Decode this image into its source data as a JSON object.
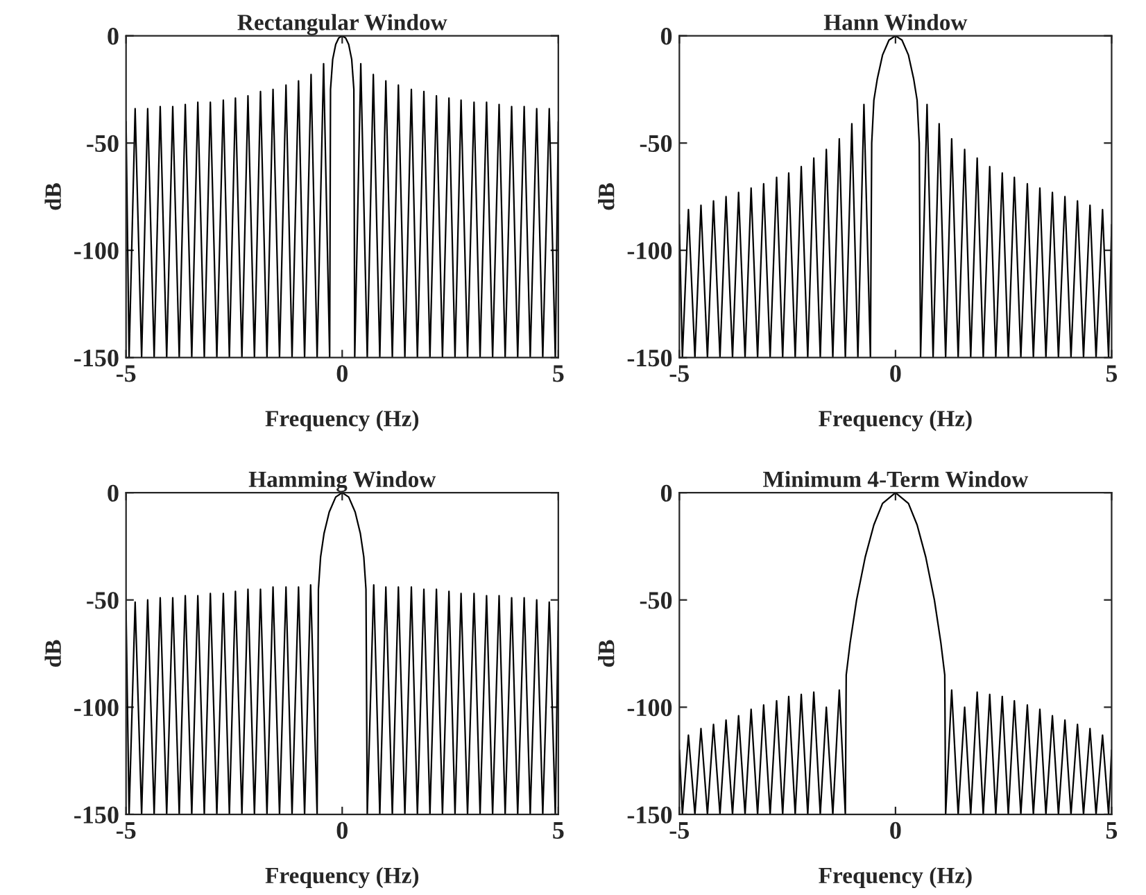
{
  "chart_data": [
    {
      "type": "line",
      "title": "Rectangular Window",
      "xlabel": "Frequency (Hz)",
      "ylabel": "dB",
      "xlim": [
        -5,
        5
      ],
      "ylim": [
        -150,
        0
      ],
      "xticks": [
        -5,
        0,
        5
      ],
      "yticks": [
        -150,
        -100,
        -50,
        0
      ],
      "series": [
        {
          "color": "#000000",
          "x": [
            -5,
            -4.93,
            -4.79,
            -4.64,
            -4.5,
            -4.35,
            -4.21,
            -4.06,
            -3.92,
            -3.77,
            -3.63,
            -3.48,
            -3.34,
            -3.19,
            -3.05,
            -2.9,
            -2.75,
            -2.61,
            -2.47,
            -2.32,
            -2.18,
            -2.03,
            -1.89,
            -1.74,
            -1.6,
            -1.45,
            -1.3,
            -1.16,
            -1.01,
            -0.87,
            -0.72,
            -0.58,
            -0.43,
            -0.29,
            -0.27,
            -0.22,
            -0.15,
            -0.08,
            0,
            0.08,
            0.15,
            0.22,
            0.27,
            0.29,
            0.43,
            0.58,
            0.72,
            0.87,
            1.01,
            1.16,
            1.3,
            1.45,
            1.6,
            1.74,
            1.89,
            2.03,
            2.18,
            2.32,
            2.47,
            2.61,
            2.75,
            2.9,
            3.05,
            3.19,
            3.34,
            3.48,
            3.63,
            3.77,
            3.92,
            4.06,
            4.21,
            4.35,
            4.5,
            4.64,
            4.79,
            4.93,
            5
          ],
          "values": [
            -40,
            -150,
            -34,
            -150,
            -34,
            -150,
            -33,
            -150,
            -33,
            -150,
            -32,
            -150,
            -31,
            -150,
            -31,
            -150,
            -30,
            -150,
            -29,
            -150,
            -28,
            -150,
            -26,
            -150,
            -25,
            -150,
            -23,
            -150,
            -21,
            -150,
            -18,
            -150,
            -13,
            -150,
            -25,
            -11,
            -4,
            -1,
            0,
            -1,
            -4,
            -11,
            -25,
            -150,
            -13,
            -150,
            -18,
            -150,
            -21,
            -150,
            -23,
            -150,
            -25,
            -150,
            -26,
            -150,
            -28,
            -150,
            -29,
            -150,
            -30,
            -150,
            -31,
            -150,
            -31,
            -150,
            -32,
            -150,
            -33,
            -150,
            -33,
            -150,
            -34,
            -150,
            -34,
            -150,
            -40
          ]
        }
      ]
    },
    {
      "type": "line",
      "title": "Hann Window",
      "xlabel": "Frequency (Hz)",
      "ylabel": "dB",
      "xlim": [
        -5,
        5
      ],
      "ylim": [
        -150,
        0
      ],
      "xticks": [
        -5,
        0,
        5
      ],
      "yticks": [
        -150,
        -100,
        -50,
        0
      ],
      "series": [
        {
          "color": "#000000",
          "x": [
            -5,
            -4.93,
            -4.79,
            -4.64,
            -4.5,
            -4.35,
            -4.21,
            -4.06,
            -3.92,
            -3.77,
            -3.63,
            -3.48,
            -3.34,
            -3.19,
            -3.05,
            -2.9,
            -2.75,
            -2.61,
            -2.47,
            -2.32,
            -2.18,
            -2.03,
            -1.89,
            -1.74,
            -1.6,
            -1.45,
            -1.3,
            -1.16,
            -1.01,
            -0.87,
            -0.73,
            -0.58,
            -0.55,
            -0.5,
            -0.42,
            -0.3,
            -0.15,
            0,
            0.15,
            0.3,
            0.42,
            0.5,
            0.55,
            0.58,
            0.73,
            0.87,
            1.01,
            1.16,
            1.3,
            1.45,
            1.6,
            1.74,
            1.89,
            2.03,
            2.18,
            2.32,
            2.47,
            2.61,
            2.75,
            2.9,
            3.05,
            3.19,
            3.34,
            3.48,
            3.63,
            3.77,
            3.92,
            4.06,
            4.21,
            4.35,
            4.5,
            4.64,
            4.79,
            4.93,
            5
          ],
          "values": [
            -88,
            -150,
            -81,
            -150,
            -79,
            -150,
            -77,
            -150,
            -75,
            -150,
            -73,
            -150,
            -71,
            -150,
            -69,
            -150,
            -66,
            -150,
            -64,
            -150,
            -61,
            -150,
            -57,
            -150,
            -53,
            -150,
            -48,
            -150,
            -41,
            -150,
            -32,
            -150,
            -50,
            -30,
            -20,
            -9,
            -2,
            0,
            -2,
            -9,
            -20,
            -30,
            -50,
            -150,
            -32,
            -150,
            -41,
            -150,
            -48,
            -150,
            -53,
            -150,
            -57,
            -150,
            -61,
            -150,
            -64,
            -150,
            -66,
            -150,
            -69,
            -150,
            -71,
            -150,
            -73,
            -150,
            -75,
            -150,
            -77,
            -150,
            -79,
            -150,
            -81,
            -150,
            -88
          ]
        }
      ]
    },
    {
      "type": "line",
      "title": "Hamming Window",
      "xlabel": "Frequency (Hz)",
      "ylabel": "dB",
      "xlim": [
        -5,
        5
      ],
      "ylim": [
        -150,
        0
      ],
      "xticks": [
        -5,
        0,
        5
      ],
      "yticks": [
        -150,
        -100,
        -50,
        0
      ],
      "series": [
        {
          "color": "#000000",
          "x": [
            -5,
            -4.93,
            -4.79,
            -4.64,
            -4.5,
            -4.35,
            -4.21,
            -4.06,
            -3.92,
            -3.77,
            -3.63,
            -3.48,
            -3.34,
            -3.19,
            -3.05,
            -2.9,
            -2.75,
            -2.61,
            -2.47,
            -2.32,
            -2.18,
            -2.03,
            -1.89,
            -1.74,
            -1.6,
            -1.45,
            -1.3,
            -1.16,
            -1.01,
            -0.87,
            -0.73,
            -0.58,
            -0.55,
            -0.5,
            -0.42,
            -0.3,
            -0.15,
            0,
            0.15,
            0.3,
            0.42,
            0.5,
            0.55,
            0.58,
            0.73,
            0.87,
            1.01,
            1.16,
            1.3,
            1.45,
            1.6,
            1.74,
            1.89,
            2.03,
            2.18,
            2.32,
            2.47,
            2.61,
            2.75,
            2.9,
            3.05,
            3.19,
            3.34,
            3.48,
            3.63,
            3.77,
            3.92,
            4.06,
            4.21,
            4.35,
            4.5,
            4.64,
            4.79,
            4.93,
            5
          ],
          "values": [
            -55,
            -150,
            -51,
            -150,
            -50,
            -150,
            -49,
            -150,
            -49,
            -150,
            -48,
            -150,
            -48,
            -150,
            -47,
            -150,
            -47,
            -150,
            -46,
            -150,
            -45,
            -150,
            -45,
            -150,
            -44,
            -150,
            -44,
            -150,
            -44,
            -150,
            -43,
            -150,
            -45,
            -30,
            -19,
            -9,
            -2,
            0,
            -2,
            -9,
            -19,
            -30,
            -45,
            -150,
            -43,
            -150,
            -44,
            -150,
            -44,
            -150,
            -44,
            -150,
            -45,
            -150,
            -45,
            -150,
            -46,
            -150,
            -47,
            -150,
            -47,
            -150,
            -48,
            -150,
            -48,
            -150,
            -49,
            -150,
            -49,
            -150,
            -50,
            -150,
            -51,
            -150,
            -55
          ]
        }
      ]
    },
    {
      "type": "line",
      "title": "Minimum 4-Term Window",
      "xlabel": "Frequency (Hz)",
      "ylabel": "dB",
      "xlim": [
        -5,
        5
      ],
      "ylim": [
        -150,
        0
      ],
      "xticks": [
        -5,
        0,
        5
      ],
      "yticks": [
        -150,
        -100,
        -50,
        0
      ],
      "series": [
        {
          "color": "#000000",
          "x": [
            -5,
            -4.93,
            -4.79,
            -4.64,
            -4.5,
            -4.35,
            -4.21,
            -4.06,
            -3.92,
            -3.77,
            -3.63,
            -3.48,
            -3.34,
            -3.19,
            -3.05,
            -2.9,
            -2.75,
            -2.61,
            -2.47,
            -2.32,
            -2.18,
            -2.03,
            -1.89,
            -1.74,
            -1.6,
            -1.45,
            -1.3,
            -1.16,
            -1.14,
            -1.05,
            -0.9,
            -0.7,
            -0.5,
            -0.3,
            0,
            0.3,
            0.5,
            0.7,
            0.9,
            1.05,
            1.14,
            1.16,
            1.3,
            1.45,
            1.6,
            1.74,
            1.89,
            2.03,
            2.18,
            2.32,
            2.47,
            2.61,
            2.75,
            2.9,
            3.05,
            3.19,
            3.34,
            3.48,
            3.63,
            3.77,
            3.92,
            4.06,
            4.21,
            4.35,
            4.5,
            4.64,
            4.79,
            4.93,
            5
          ],
          "values": [
            -120,
            -150,
            -113,
            -150,
            -110,
            -150,
            -108,
            -150,
            -106,
            -150,
            -104,
            -150,
            -101,
            -150,
            -99,
            -150,
            -97,
            -150,
            -95,
            -150,
            -94,
            -150,
            -93,
            -150,
            -100,
            -150,
            -92,
            -150,
            -85,
            -70,
            -50,
            -30,
            -15,
            -5,
            0,
            -5,
            -15,
            -30,
            -50,
            -70,
            -85,
            -150,
            -92,
            -150,
            -100,
            -150,
            -93,
            -150,
            -94,
            -150,
            -95,
            -150,
            -97,
            -150,
            -99,
            -150,
            -101,
            -150,
            -104,
            -150,
            -106,
            -150,
            -108,
            -150,
            -110,
            -150,
            -113,
            -150,
            -120
          ]
        }
      ]
    }
  ]
}
